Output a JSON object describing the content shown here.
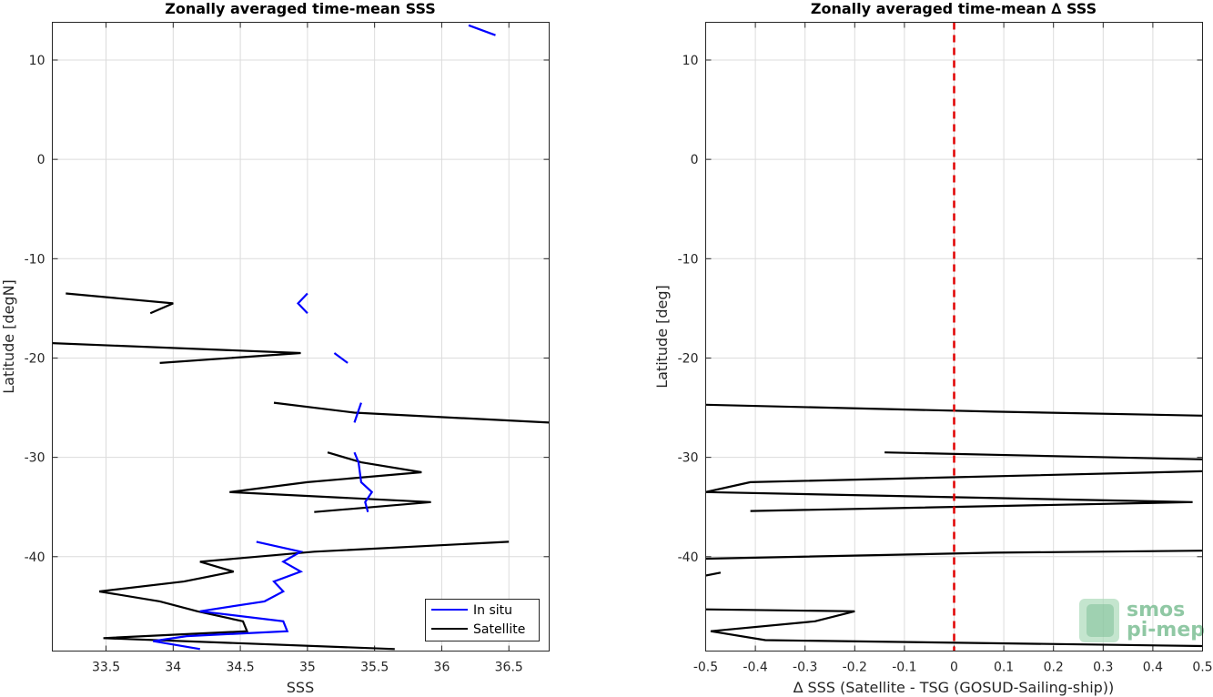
{
  "chart_data": [
    {
      "type": "line",
      "title": "Zonally averaged time-mean SSS",
      "xlabel": "SSS",
      "ylabel": "Latitude [degN]",
      "xlim": [
        33.1,
        36.8
      ],
      "ylim": [
        -49.5,
        13.8
      ],
      "xticks": [
        33.5,
        34,
        34.5,
        35,
        35.5,
        36,
        36.5
      ],
      "xtick_labels": [
        "33.5",
        "34",
        "34.5",
        "35",
        "35.5",
        "36",
        "36.5"
      ],
      "yticks": [
        -40,
        -30,
        -20,
        -10,
        0,
        10
      ],
      "ytick_labels": [
        "-40",
        "-30",
        "-20",
        "-10",
        "0",
        "10"
      ],
      "grid": true,
      "legend_position": "bottom-right",
      "series": [
        {
          "name": "In situ",
          "color": "#0000ff",
          "segments": [
            [
              [
                36.4,
                12.5
              ],
              [
                36.2,
                13.5
              ]
            ],
            [
              [
                35.0,
                -13.5
              ],
              [
                34.93,
                -14.5
              ],
              [
                35.0,
                -15.5
              ]
            ],
            [
              [
                35.2,
                -19.5
              ],
              [
                35.3,
                -20.5
              ]
            ],
            [
              [
                35.4,
                -24.5
              ],
              [
                35.35,
                -26.5
              ]
            ],
            [
              [
                35.35,
                -29.5
              ],
              [
                35.38,
                -30.5
              ],
              [
                35.4,
                -32.5
              ],
              [
                35.48,
                -33.5
              ],
              [
                35.43,
                -34.5
              ],
              [
                35.45,
                -35.5
              ]
            ],
            [
              [
                34.62,
                -38.5
              ],
              [
                34.95,
                -39.5
              ],
              [
                34.82,
                -40.5
              ],
              [
                34.95,
                -41.5
              ],
              [
                34.75,
                -42.5
              ],
              [
                34.82,
                -43.5
              ],
              [
                34.68,
                -44.5
              ],
              [
                34.2,
                -45.5
              ],
              [
                34.82,
                -46.5
              ],
              [
                34.85,
                -47.5
              ],
              [
                34.1,
                -48.0
              ],
              [
                33.85,
                -48.5
              ],
              [
                34.2,
                -49.3
              ]
            ]
          ]
        },
        {
          "name": "Satellite",
          "color": "#000000",
          "segments": [
            [
              [
                33.2,
                -13.5
              ],
              [
                34.0,
                -14.5
              ],
              [
                33.83,
                -15.5
              ]
            ],
            [
              [
                33.1,
                -18.5
              ],
              [
                34.95,
                -19.5
              ],
              [
                33.9,
                -20.5
              ]
            ],
            [
              [
                34.75,
                -24.5
              ],
              [
                35.35,
                -25.5
              ],
              [
                36.8,
                -26.5
              ]
            ],
            [
              [
                35.15,
                -29.5
              ],
              [
                35.4,
                -30.5
              ],
              [
                35.85,
                -31.5
              ],
              [
                35.0,
                -32.5
              ],
              [
                34.42,
                -33.5
              ],
              [
                35.92,
                -34.5
              ],
              [
                35.05,
                -35.5
              ]
            ],
            [
              [
                36.5,
                -38.5
              ],
              [
                35.05,
                -39.5
              ],
              [
                34.2,
                -40.5
              ],
              [
                34.45,
                -41.5
              ],
              [
                34.08,
                -42.5
              ],
              [
                33.45,
                -43.5
              ],
              [
                33.9,
                -44.5
              ],
              [
                34.18,
                -45.5
              ],
              [
                34.52,
                -46.5
              ],
              [
                34.55,
                -47.5
              ],
              [
                33.48,
                -48.2
              ],
              [
                35.65,
                -49.3
              ]
            ]
          ]
        }
      ]
    },
    {
      "type": "line",
      "title": "Zonally averaged time-mean ∆ SSS",
      "xlabel": "∆ SSS (Satellite - TSG (GOSUD-Sailing-ship))",
      "ylabel": "Latitude [deg]",
      "xlim": [
        -0.5,
        0.5
      ],
      "ylim": [
        -49.5,
        13.8
      ],
      "xticks": [
        -0.5,
        -0.4,
        -0.3,
        -0.2,
        -0.1,
        0,
        0.1,
        0.2,
        0.3,
        0.4,
        0.5
      ],
      "xtick_labels": [
        "-0.5",
        "-0.4",
        "-0.3",
        "-0.2",
        "-0.1",
        "0",
        "0.1",
        "0.2",
        "0.3",
        "0.4",
        "0.5"
      ],
      "yticks": [
        -40,
        -30,
        -20,
        -10,
        0,
        10
      ],
      "ytick_labels": [
        "-40",
        "-30",
        "-20",
        "-10",
        "0",
        "10"
      ],
      "grid": true,
      "reference_line": {
        "x": 0,
        "color": "#e00000",
        "style": "dashed"
      },
      "series": [
        {
          "color": "#000000",
          "segments": [
            [
              [
                -0.5,
                -24.7
              ],
              [
                0.08,
                -25.4
              ],
              [
                0.5,
                -25.8
              ]
            ],
            [
              [
                -0.14,
                -29.5
              ],
              [
                0.5,
                -30.2
              ]
            ],
            [
              [
                0.5,
                -31.4
              ],
              [
                -0.41,
                -32.5
              ],
              [
                -0.5,
                -33.5
              ],
              [
                0.48,
                -34.5
              ],
              [
                -0.41,
                -35.4
              ]
            ],
            [
              [
                0.5,
                -39.4
              ],
              [
                0.08,
                -39.6
              ],
              [
                -0.5,
                -40.2
              ]
            ],
            [
              [
                -0.47,
                -41.6
              ],
              [
                -0.5,
                -41.9
              ]
            ],
            [
              [
                -0.5,
                -45.3
              ],
              [
                -0.2,
                -45.5
              ],
              [
                -0.28,
                -46.5
              ],
              [
                -0.49,
                -47.5
              ],
              [
                -0.38,
                -48.4
              ],
              [
                0.5,
                -49.0
              ]
            ]
          ]
        }
      ]
    }
  ],
  "legend": {
    "entries": [
      {
        "label": "In situ",
        "color": "#0000ff"
      },
      {
        "label": "Satellite",
        "color": "#000000"
      }
    ]
  },
  "logo": {
    "line1": "smos",
    "line2": "pi-mep",
    "color": "#7dbf95"
  }
}
